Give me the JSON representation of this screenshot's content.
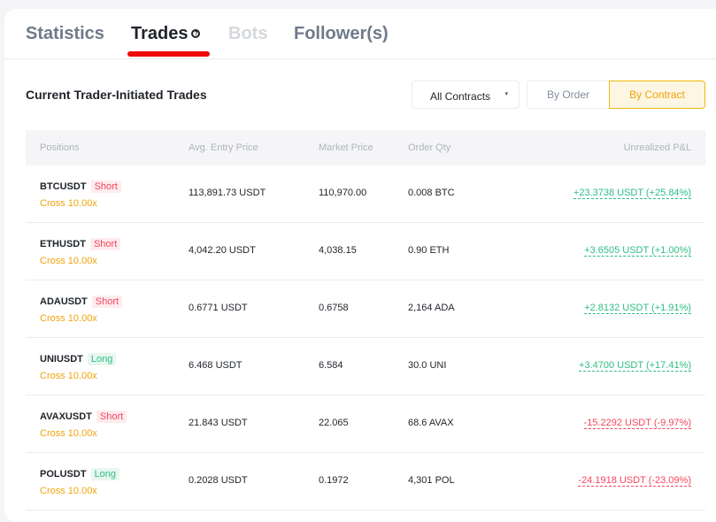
{
  "tabs": [
    {
      "label": "Statistics"
    },
    {
      "label": "Trades"
    },
    {
      "label": "Bots"
    },
    {
      "label": "Follower(s)"
    }
  ],
  "help_icon": "?",
  "section_title": "Current Trader-Initiated Trades",
  "filter": {
    "selected": "All Contracts",
    "caret": "▾"
  },
  "view_toggle": {
    "by_order": "By Order",
    "by_contract": "By Contract"
  },
  "columns": [
    "Positions",
    "Avg. Entry Price",
    "Market Price",
    "Order Qty",
    "Unrealized P&L"
  ],
  "colors": {
    "accent": "#f0b90b",
    "positive": "#2ebd85",
    "negative": "#f6465d"
  },
  "rows": [
    {
      "symbol": "BTCUSDT",
      "side": "Short",
      "leverage": "Cross 10.00x",
      "entry": "113,891.73 USDT",
      "market": "110,970.00",
      "qty": "0.008 BTC",
      "pnl": "+23.3738 USDT (+25.84%)"
    },
    {
      "symbol": "ETHUSDT",
      "side": "Short",
      "leverage": "Cross 10.00x",
      "entry": "4,042.20 USDT",
      "market": "4,038.15",
      "qty": "0.90 ETH",
      "pnl": "+3.6505 USDT (+1.00%)"
    },
    {
      "symbol": "ADAUSDT",
      "side": "Short",
      "leverage": "Cross 10.00x",
      "entry": "0.6771 USDT",
      "market": "0.6758",
      "qty": "2,164 ADA",
      "pnl": "+2.8132 USDT (+1.91%)"
    },
    {
      "symbol": "UNIUSDT",
      "side": "Long",
      "leverage": "Cross 10.00x",
      "entry": "6.468 USDT",
      "market": "6.584",
      "qty": "30.0 UNI",
      "pnl": "+3.4700 USDT (+17.41%)"
    },
    {
      "symbol": "AVAXUSDT",
      "side": "Short",
      "leverage": "Cross 10.00x",
      "entry": "21.843 USDT",
      "market": "22.065",
      "qty": "68.6 AVAX",
      "pnl": "-15.2292 USDT (-9.97%)"
    },
    {
      "symbol": "POLUSDT",
      "side": "Long",
      "leverage": "Cross 10.00x",
      "entry": "0.2028 USDT",
      "market": "0.1972",
      "qty": "4,301 POL",
      "pnl": "-24.1918 USDT (-23.09%)"
    }
  ]
}
